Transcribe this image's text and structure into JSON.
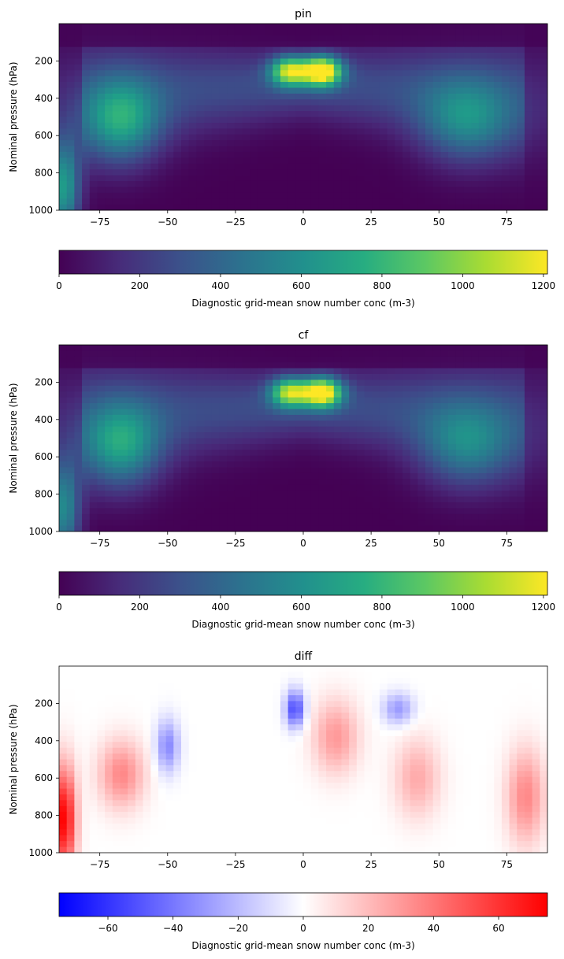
{
  "chart_data": [
    {
      "type": "heatmap",
      "title": "pin",
      "xlabel": "",
      "ylabel": "Nominal pressure (hPa)",
      "x_range": [
        -90,
        90
      ],
      "y_range": [
        1000,
        0
      ],
      "x_ticks": [
        -75,
        -50,
        -25,
        0,
        25,
        50,
        75
      ],
      "y_ticks": [
        200,
        400,
        600,
        800,
        1000
      ],
      "colormap": "viridis",
      "colorbar": {
        "range": [
          0,
          1210
        ],
        "ticks": [
          0,
          200,
          400,
          600,
          800,
          1000,
          1200
        ],
        "label": "Diagnostic grid-mean snow number conc (m-3)"
      },
      "features": [
        {
          "lat": -67,
          "p": 520,
          "lat_width": 10,
          "p_width": 160,
          "value": 560
        },
        {
          "lat": -5,
          "p": 255,
          "lat_width": 5,
          "p_width": 55,
          "value": 930
        },
        {
          "lat": 7,
          "p": 255,
          "lat_width": 5,
          "p_width": 55,
          "value": 1200
        },
        {
          "lat": 60,
          "p": 520,
          "lat_width": 12,
          "p_width": 160,
          "value": 430
        },
        {
          "lat": -88,
          "p": 880,
          "lat_width": 4,
          "p_width": 180,
          "value": 650
        }
      ]
    },
    {
      "type": "heatmap",
      "title": "cf",
      "xlabel": "",
      "ylabel": "Nominal pressure (hPa)",
      "x_range": [
        -90,
        90
      ],
      "y_range": [
        1000,
        0
      ],
      "x_ticks": [
        -75,
        -50,
        -25,
        0,
        25,
        50,
        75
      ],
      "y_ticks": [
        200,
        400,
        600,
        800,
        1000
      ],
      "colormap": "viridis",
      "colorbar": {
        "range": [
          0,
          1210
        ],
        "ticks": [
          0,
          200,
          400,
          600,
          800,
          1000,
          1200
        ],
        "label": "Diagnostic grid-mean snow number conc (m-3)"
      },
      "features": [
        {
          "lat": -67,
          "p": 540,
          "lat_width": 10,
          "p_width": 160,
          "value": 540
        },
        {
          "lat": -5,
          "p": 255,
          "lat_width": 5,
          "p_width": 55,
          "value": 880
        },
        {
          "lat": 7,
          "p": 255,
          "lat_width": 5,
          "p_width": 55,
          "value": 1150
        },
        {
          "lat": 60,
          "p": 540,
          "lat_width": 12,
          "p_width": 160,
          "value": 410
        },
        {
          "lat": -88,
          "p": 880,
          "lat_width": 4,
          "p_width": 180,
          "value": 560
        }
      ]
    },
    {
      "type": "heatmap",
      "title": "diff",
      "xlabel": "",
      "ylabel": "Nominal pressure (hPa)",
      "x_range": [
        -90,
        90
      ],
      "y_range": [
        1000,
        0
      ],
      "x_ticks": [
        -75,
        -50,
        -25,
        0,
        25,
        50,
        75
      ],
      "y_ticks": [
        200,
        400,
        600,
        800,
        1000
      ],
      "colormap": "bwr",
      "colorbar": {
        "range": [
          -75,
          75
        ],
        "ticks": [
          -60,
          -40,
          -20,
          0,
          20,
          40,
          60
        ],
        "label": "Diagnostic grid-mean snow number conc (m-3)"
      },
      "features": [
        {
          "lat": -88,
          "p": 820,
          "lat_width": 3,
          "p_width": 200,
          "value": 75
        },
        {
          "lat": -67,
          "p": 580,
          "lat_width": 6,
          "p_width": 130,
          "value": 35
        },
        {
          "lat": -50,
          "p": 430,
          "lat_width": 3,
          "p_width": 100,
          "value": -35
        },
        {
          "lat": -3,
          "p": 230,
          "lat_width": 2.5,
          "p_width": 70,
          "value": -55
        },
        {
          "lat": 12,
          "p": 380,
          "lat_width": 6,
          "p_width": 140,
          "value": 30
        },
        {
          "lat": 35,
          "p": 230,
          "lat_width": 4,
          "p_width": 60,
          "value": -30
        },
        {
          "lat": 42,
          "p": 600,
          "lat_width": 6,
          "p_width": 150,
          "value": 25
        },
        {
          "lat": 82,
          "p": 700,
          "lat_width": 5,
          "p_width": 180,
          "value": 35
        }
      ]
    }
  ]
}
